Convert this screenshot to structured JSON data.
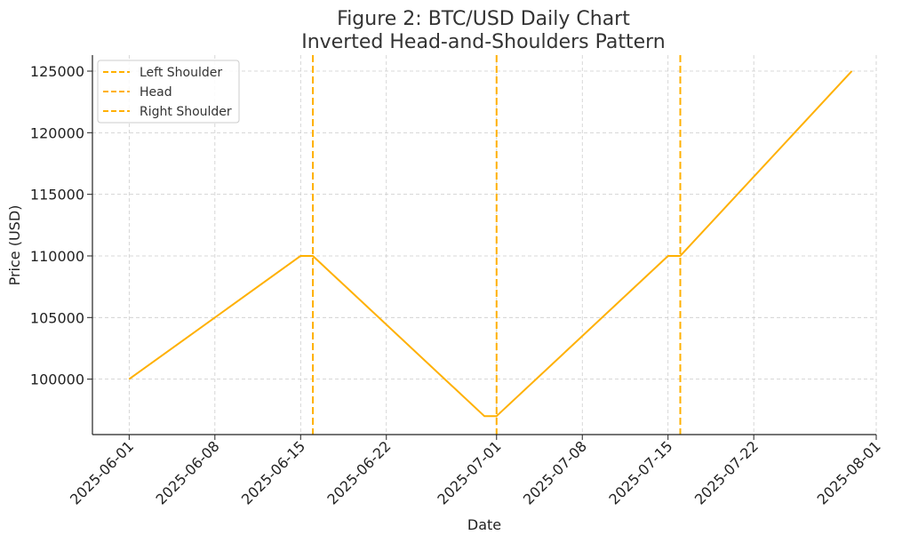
{
  "chart_data": {
    "type": "line",
    "title_line1": "Figure 2: BTC/USD Daily Chart",
    "title_line2": "Inverted Head-and-Shoulders Pattern",
    "xlabel": "Date",
    "ylabel": "Price (USD)",
    "xlim": [
      "2025-05-29",
      "2025-08-01"
    ],
    "ylim": [
      95500,
      126300
    ],
    "grid": true,
    "legend_placement": "top-left",
    "line_color": "#FFB000",
    "x_ticks": [
      "2025-06-01",
      "2025-06-08",
      "2025-06-15",
      "2025-06-22",
      "2025-07-01",
      "2025-07-08",
      "2025-07-15",
      "2025-07-22",
      "2025-08-01"
    ],
    "y_ticks": [
      100000,
      105000,
      110000,
      115000,
      120000,
      125000
    ],
    "series": [
      {
        "points": [
          {
            "x": "2025-06-01",
            "y": 100000
          },
          {
            "x": "2025-06-15",
            "y": 110000
          },
          {
            "x": "2025-06-16",
            "y": 110000
          },
          {
            "x": "2025-06-30",
            "y": 97000
          },
          {
            "x": "2025-07-01",
            "y": 97000
          },
          {
            "x": "2025-07-15",
            "y": 110000
          },
          {
            "x": "2025-07-16",
            "y": 110000
          },
          {
            "x": "2025-07-30",
            "y": 125000
          }
        ]
      }
    ],
    "vlines": [
      {
        "name": "Left Shoulder",
        "x": "2025-06-16"
      },
      {
        "name": "Head",
        "x": "2025-07-01"
      },
      {
        "name": "Right Shoulder",
        "x": "2025-07-16"
      }
    ]
  }
}
